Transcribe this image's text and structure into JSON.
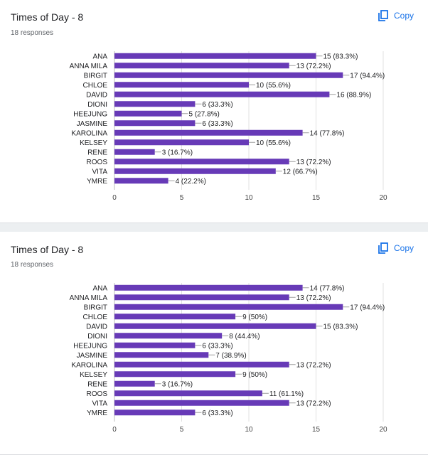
{
  "colors": {
    "bar": "#673ab7",
    "grid": "#e0e0e0",
    "accent": "#1a73e8"
  },
  "cards": [
    {
      "title": "Times of Day - 8",
      "responses": "18 responses",
      "copy_label": "Copy",
      "copy_icon": "copy-icon"
    },
    {
      "title": "Times of Day - 8",
      "responses": "18 responses",
      "copy_label": "Copy",
      "copy_icon": "copy-icon"
    }
  ],
  "chart_data": [
    {
      "type": "bar",
      "orientation": "horizontal",
      "categories": [
        "ANA",
        "ANNA MILA",
        "BIRGIT",
        "CHLOE",
        "DAVID",
        "DIONI",
        "HEEJUNG",
        "JASMINE",
        "KAROLINA",
        "KELSEY",
        "RENE",
        "ROOS",
        "VITA",
        "YMRE"
      ],
      "values": [
        15,
        13,
        17,
        10,
        16,
        6,
        5,
        6,
        14,
        10,
        3,
        13,
        12,
        4
      ],
      "data_labels": [
        "15 (83.3%)",
        "13 (72.2%)",
        "17 (94.4%)",
        "10 (55.6%)",
        "16 (88.9%)",
        "6 (33.3%)",
        "5 (27.8%)",
        "6 (33.3%)",
        "14 (77.8%)",
        "10 (55.6%)",
        "3 (16.7%)",
        "13 (72.2%)",
        "12 (66.7%)",
        "4 (22.2%)"
      ],
      "xlim": [
        0,
        20
      ],
      "xticks": [
        "0",
        "5",
        "10",
        "15",
        "20"
      ],
      "grid": true
    },
    {
      "type": "bar",
      "orientation": "horizontal",
      "categories": [
        "ANA",
        "ANNA MILA",
        "BIRGIT",
        "CHLOE",
        "DAVID",
        "DIONI",
        "HEEJUNG",
        "JASMINE",
        "KAROLINA",
        "KELSEY",
        "RENE",
        "ROOS",
        "VITA",
        "YMRE"
      ],
      "values": [
        14,
        13,
        17,
        9,
        15,
        8,
        6,
        7,
        13,
        9,
        3,
        11,
        13,
        6
      ],
      "data_labels": [
        "14 (77.8%)",
        "13 (72.2%)",
        "17 (94.4%)",
        "9 (50%)",
        "15 (83.3%)",
        "8 (44.4%)",
        "6 (33.3%)",
        "7 (38.9%)",
        "13 (72.2%)",
        "9 (50%)",
        "3 (16.7%)",
        "11 (61.1%)",
        "13 (72.2%)",
        "6 (33.3%)"
      ],
      "xlim": [
        0,
        20
      ],
      "xticks": [
        "0",
        "5",
        "10",
        "15",
        "20"
      ],
      "grid": true
    }
  ]
}
